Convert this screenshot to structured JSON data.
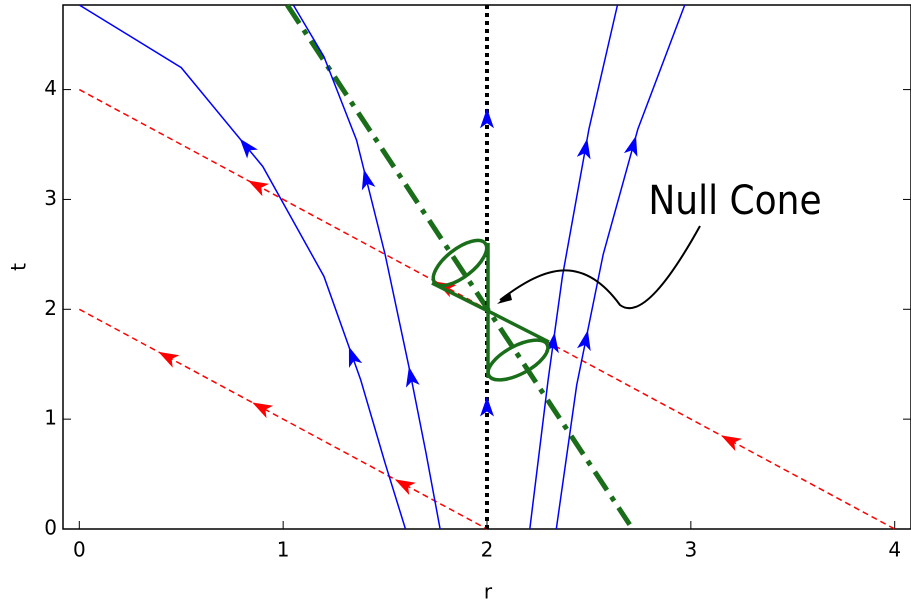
{
  "chart_data": {
    "type": "line",
    "xlabel": "r",
    "ylabel": "t",
    "annotation": "Null Cone",
    "xlim": [
      -0.08,
      4.08
    ],
    "ylim": [
      0,
      4.77
    ],
    "xticks": [
      0,
      1,
      2,
      3,
      4
    ],
    "yticks": [
      0,
      1,
      2,
      3,
      4
    ],
    "series": [
      {
        "color": "#ff0000",
        "linestyle": "dashed",
        "x": [
          0,
          4
        ],
        "values": [
          4,
          0
        ]
      },
      {
        "color": "#ff0000",
        "linestyle": "dashed",
        "x": [
          0,
          2
        ],
        "values": [
          2,
          0
        ]
      },
      {
        "color": "#1a6e1a",
        "linestyle": "dashdot",
        "x": [
          1.02,
          2.7
        ],
        "values": [
          4.77,
          0.04
        ]
      },
      {
        "color": "#000000",
        "linestyle": "dotted",
        "x": [
          2,
          2
        ],
        "values": [
          0,
          4.77
        ]
      },
      {
        "color": "#0000ff",
        "linestyle": "solid",
        "x": [
          0,
          0.5,
          0.9,
          1.2,
          1.38,
          1.5,
          1.6
        ],
        "values": [
          4.77,
          4.2,
          3.3,
          2.3,
          1.36,
          0.6,
          0
        ]
      },
      {
        "color": "#0000ff",
        "linestyle": "solid",
        "x": [
          1.05,
          1.2,
          1.36,
          1.5,
          1.62,
          1.7,
          1.77
        ],
        "values": [
          4.77,
          4.3,
          3.54,
          2.5,
          1.45,
          0.7,
          0
        ]
      },
      {
        "color": "#0000ff",
        "linestyle": "solid",
        "x": [
          2.21,
          2.3,
          2.37,
          2.5,
          2.64
        ],
        "values": [
          0,
          1.36,
          2.3,
          3.64,
          4.77
        ]
      },
      {
        "color": "#0000ff",
        "linestyle": "solid",
        "x": [
          2.34,
          2.44,
          2.57,
          2.74,
          2.97
        ],
        "values": [
          0,
          1.31,
          2.5,
          3.64,
          4.77
        ]
      }
    ]
  }
}
